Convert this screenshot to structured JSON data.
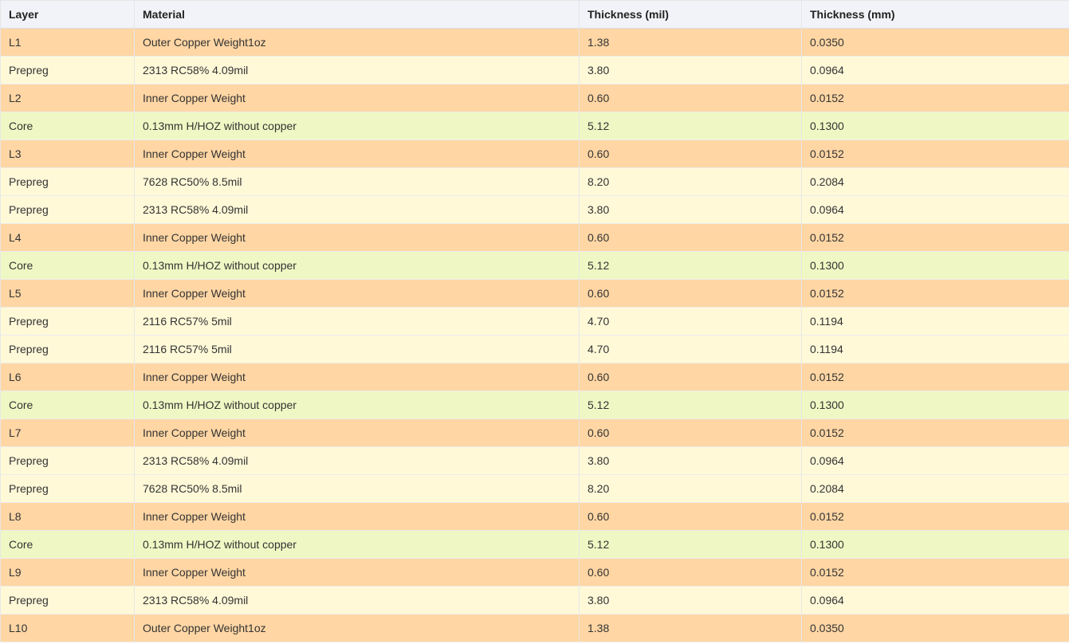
{
  "table": {
    "headers": {
      "layer": "Layer",
      "material": "Material",
      "thickness_mil": "Thickness (mil)",
      "thickness_mm": "Thickness (mm)"
    },
    "rows": [
      {
        "layer": "L1",
        "material": "Outer Copper Weight1oz",
        "mil": "1.38",
        "mm": "0.0350",
        "kind": "copper"
      },
      {
        "layer": "Prepreg",
        "material": "2313 RC58% 4.09mil",
        "mil": "3.80",
        "mm": "0.0964",
        "kind": "prepreg"
      },
      {
        "layer": "L2",
        "material": "Inner Copper Weight",
        "mil": "0.60",
        "mm": "0.0152",
        "kind": "copper"
      },
      {
        "layer": "Core",
        "material": "0.13mm H/HOZ without copper",
        "mil": "5.12",
        "mm": "0.1300",
        "kind": "core"
      },
      {
        "layer": "L3",
        "material": "Inner Copper Weight",
        "mil": "0.60",
        "mm": "0.0152",
        "kind": "copper"
      },
      {
        "layer": "Prepreg",
        "material": "7628 RC50% 8.5mil",
        "mil": "8.20",
        "mm": "0.2084",
        "kind": "prepreg"
      },
      {
        "layer": "Prepreg",
        "material": "2313 RC58% 4.09mil",
        "mil": "3.80",
        "mm": "0.0964",
        "kind": "prepreg"
      },
      {
        "layer": "L4",
        "material": "Inner Copper Weight",
        "mil": "0.60",
        "mm": "0.0152",
        "kind": "copper"
      },
      {
        "layer": "Core",
        "material": "0.13mm H/HOZ without copper",
        "mil": "5.12",
        "mm": "0.1300",
        "kind": "core"
      },
      {
        "layer": "L5",
        "material": "Inner Copper Weight",
        "mil": "0.60",
        "mm": "0.0152",
        "kind": "copper"
      },
      {
        "layer": "Prepreg",
        "material": "2116 RC57% 5mil",
        "mil": "4.70",
        "mm": "0.1194",
        "kind": "prepreg"
      },
      {
        "layer": "Prepreg",
        "material": "2116 RC57% 5mil",
        "mil": "4.70",
        "mm": "0.1194",
        "kind": "prepreg"
      },
      {
        "layer": "L6",
        "material": "Inner Copper Weight",
        "mil": "0.60",
        "mm": "0.0152",
        "kind": "copper"
      },
      {
        "layer": "Core",
        "material": "0.13mm H/HOZ without copper",
        "mil": "5.12",
        "mm": "0.1300",
        "kind": "core"
      },
      {
        "layer": "L7",
        "material": "Inner Copper Weight",
        "mil": "0.60",
        "mm": "0.0152",
        "kind": "copper"
      },
      {
        "layer": "Prepreg",
        "material": "2313 RC58% 4.09mil",
        "mil": "3.80",
        "mm": "0.0964",
        "kind": "prepreg"
      },
      {
        "layer": "Prepreg",
        "material": "7628 RC50% 8.5mil",
        "mil": "8.20",
        "mm": "0.2084",
        "kind": "prepreg"
      },
      {
        "layer": "L8",
        "material": "Inner Copper Weight",
        "mil": "0.60",
        "mm": "0.0152",
        "kind": "copper"
      },
      {
        "layer": "Core",
        "material": "0.13mm H/HOZ without copper",
        "mil": "5.12",
        "mm": "0.1300",
        "kind": "core"
      },
      {
        "layer": "L9",
        "material": "Inner Copper Weight",
        "mil": "0.60",
        "mm": "0.0152",
        "kind": "copper"
      },
      {
        "layer": "Prepreg",
        "material": "2313 RC58% 4.09mil",
        "mil": "3.80",
        "mm": "0.0964",
        "kind": "prepreg"
      },
      {
        "layer": "L10",
        "material": "Outer Copper Weight1oz",
        "mil": "1.38",
        "mm": "0.0350",
        "kind": "copper"
      }
    ]
  },
  "colors": {
    "copper_row": "#ffd6a4",
    "prepreg_row": "#fff9d8",
    "core_row": "#eff8c4",
    "header_row": "#f2f3f8"
  }
}
